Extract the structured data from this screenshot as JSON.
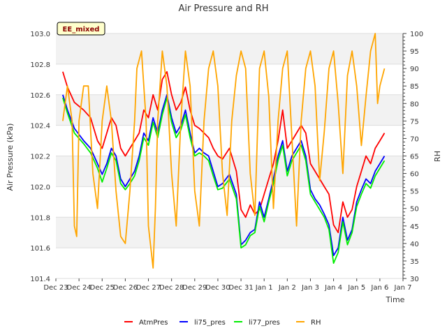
{
  "chart_data": {
    "type": "line",
    "title": "Air Pressure and RH",
    "xlabel": "Time",
    "ylabel": "Air Pressure (kPa)",
    "y2label": "RH",
    "badge": "EE_mixed",
    "x_tick_labels": [
      "Dec 23",
      "Dec 24",
      "Dec 25",
      "Dec 26",
      "Dec 27",
      "Dec 28",
      "Dec 29",
      "Dec 30",
      "Dec 31",
      "Jan 1",
      "Jan 2",
      "Jan 3",
      "Jan 4",
      "Jan 5",
      "Jan 6",
      "Jan 7"
    ],
    "xlim": [
      0,
      15
    ],
    "ylim": [
      101.4,
      103.0
    ],
    "y_ticks": [
      "101.4",
      "101.6",
      "101.8",
      "102.0",
      "102.2",
      "102.4",
      "102.6",
      "102.8",
      "103.0"
    ],
    "y2lim": [
      30,
      100
    ],
    "y2_ticks": [
      "30",
      "35",
      "40",
      "45",
      "50",
      "55",
      "60",
      "65",
      "70",
      "75",
      "80",
      "85",
      "90",
      "95",
      "100"
    ],
    "grid": "horizontal bands",
    "legend_position": "bottom",
    "series": [
      {
        "name": "AtmPres",
        "axis": "left",
        "color": "#ff0000",
        "x": [
          0.3,
          0.5,
          0.8,
          1.2,
          1.5,
          1.8,
          2.0,
          2.2,
          2.4,
          2.6,
          2.8,
          3.0,
          3.2,
          3.4,
          3.6,
          3.8,
          4.0,
          4.2,
          4.4,
          4.6,
          4.8,
          5.0,
          5.2,
          5.4,
          5.6,
          5.8,
          6.0,
          6.2,
          6.4,
          6.6,
          6.8,
          7.0,
          7.2,
          7.5,
          7.8,
          8.0,
          8.2,
          8.4,
          8.6,
          8.8,
          9.0,
          9.2,
          9.4,
          9.6,
          9.8,
          10.0,
          10.2,
          10.4,
          10.6,
          10.8,
          11.0,
          11.2,
          11.4,
          11.6,
          11.8,
          12.0,
          12.2,
          12.4,
          12.6,
          12.8,
          13.0,
          13.2,
          13.4,
          13.6,
          13.8,
          14.0,
          14.2
        ],
        "values": [
          102.75,
          102.65,
          102.55,
          102.5,
          102.45,
          102.3,
          102.25,
          102.35,
          102.45,
          102.4,
          102.25,
          102.2,
          102.25,
          102.3,
          102.35,
          102.5,
          102.45,
          102.6,
          102.5,
          102.7,
          102.75,
          102.6,
          102.5,
          102.55,
          102.65,
          102.5,
          102.4,
          102.38,
          102.35,
          102.32,
          102.25,
          102.2,
          102.18,
          102.25,
          102.1,
          101.85,
          101.8,
          101.88,
          101.82,
          101.85,
          101.95,
          102.05,
          102.15,
          102.3,
          102.5,
          102.25,
          102.3,
          102.35,
          102.4,
          102.35,
          102.15,
          102.1,
          102.05,
          102.0,
          101.95,
          101.75,
          101.7,
          101.9,
          101.8,
          101.85,
          102.0,
          102.1,
          102.2,
          102.15,
          102.25,
          102.3,
          102.35
        ]
      },
      {
        "name": "li75_pres",
        "axis": "left",
        "color": "#0000ff",
        "x": [
          0.3,
          0.5,
          0.8,
          1.2,
          1.5,
          1.8,
          2.0,
          2.2,
          2.4,
          2.6,
          2.8,
          3.0,
          3.2,
          3.4,
          3.6,
          3.8,
          4.0,
          4.2,
          4.4,
          4.6,
          4.8,
          5.0,
          5.2,
          5.4,
          5.6,
          5.8,
          6.0,
          6.2,
          6.4,
          6.6,
          6.8,
          7.0,
          7.2,
          7.5,
          7.8,
          8.0,
          8.2,
          8.4,
          8.6,
          8.8,
          9.0,
          9.2,
          9.4,
          9.6,
          9.8,
          10.0,
          10.2,
          10.4,
          10.6,
          10.8,
          11.0,
          11.2,
          11.4,
          11.6,
          11.8,
          12.0,
          12.2,
          12.4,
          12.6,
          12.8,
          13.0,
          13.2,
          13.4,
          13.6,
          13.8,
          14.0,
          14.2
        ],
        "values": [
          102.6,
          102.5,
          102.38,
          102.3,
          102.25,
          102.15,
          102.08,
          102.15,
          102.25,
          102.2,
          102.05,
          102.0,
          102.05,
          102.1,
          102.2,
          102.35,
          102.3,
          102.45,
          102.35,
          102.5,
          102.6,
          102.45,
          102.35,
          102.4,
          102.5,
          102.35,
          102.22,
          102.25,
          102.22,
          102.2,
          102.1,
          102.0,
          102.02,
          102.08,
          101.95,
          101.62,
          101.65,
          101.7,
          101.72,
          101.9,
          101.8,
          101.92,
          102.05,
          102.2,
          102.3,
          102.1,
          102.2,
          102.25,
          102.3,
          102.2,
          101.98,
          101.92,
          101.88,
          101.82,
          101.75,
          101.55,
          101.6,
          101.8,
          101.65,
          101.72,
          101.9,
          101.98,
          102.05,
          102.02,
          102.1,
          102.15,
          102.2
        ]
      },
      {
        "name": "li77_pres",
        "axis": "left",
        "color": "#00ee00",
        "x": [
          0.3,
          0.5,
          0.8,
          1.2,
          1.5,
          1.8,
          2.0,
          2.2,
          2.4,
          2.6,
          2.8,
          3.0,
          3.2,
          3.4,
          3.6,
          3.8,
          4.0,
          4.2,
          4.4,
          4.6,
          4.8,
          5.0,
          5.2,
          5.4,
          5.6,
          5.8,
          6.0,
          6.2,
          6.4,
          6.6,
          6.8,
          7.0,
          7.2,
          7.5,
          7.8,
          8.0,
          8.2,
          8.4,
          8.6,
          8.8,
          9.0,
          9.2,
          9.4,
          9.6,
          9.8,
          10.0,
          10.2,
          10.4,
          10.6,
          10.8,
          11.0,
          11.2,
          11.4,
          11.6,
          11.8,
          12.0,
          12.2,
          12.4,
          12.6,
          12.8,
          13.0,
          13.2,
          13.4,
          13.6,
          13.8,
          14.0,
          14.2
        ],
        "values": [
          102.58,
          102.48,
          102.35,
          102.28,
          102.22,
          102.12,
          102.03,
          102.12,
          102.22,
          102.17,
          102.02,
          101.98,
          102.02,
          102.07,
          102.17,
          102.32,
          102.27,
          102.42,
          102.32,
          102.47,
          102.58,
          102.42,
          102.32,
          102.37,
          102.47,
          102.32,
          102.2,
          102.22,
          102.2,
          102.17,
          102.07,
          101.98,
          101.99,
          102.05,
          101.92,
          101.6,
          101.62,
          101.68,
          101.7,
          101.87,
          101.77,
          101.9,
          102.02,
          102.17,
          102.27,
          102.07,
          102.17,
          102.22,
          102.27,
          102.17,
          101.95,
          101.9,
          101.85,
          101.8,
          101.72,
          101.5,
          101.57,
          101.77,
          101.62,
          101.7,
          101.87,
          101.95,
          102.02,
          101.99,
          102.07,
          102.12,
          102.17
        ]
      },
      {
        "name": "RH",
        "axis": "right",
        "color": "#ffa500",
        "x": [
          0.3,
          0.5,
          0.7,
          0.8,
          0.9,
          1.0,
          1.2,
          1.4,
          1.6,
          1.8,
          2.0,
          2.2,
          2.4,
          2.6,
          2.8,
          3.0,
          3.2,
          3.4,
          3.5,
          3.7,
          3.9,
          4.0,
          4.2,
          4.3,
          4.4,
          4.6,
          4.8,
          5.0,
          5.2,
          5.4,
          5.6,
          5.8,
          6.0,
          6.2,
          6.4,
          6.6,
          6.8,
          7.0,
          7.2,
          7.4,
          7.6,
          7.8,
          8.0,
          8.2,
          8.4,
          8.6,
          8.8,
          9.0,
          9.2,
          9.4,
          9.6,
          9.8,
          10.0,
          10.2,
          10.4,
          10.6,
          10.8,
          11.0,
          11.2,
          11.4,
          11.6,
          11.8,
          12.0,
          12.2,
          12.4,
          12.6,
          12.8,
          13.0,
          13.2,
          13.4,
          13.6,
          13.8,
          13.9,
          14.0,
          14.2
        ],
        "values": [
          75,
          85,
          75,
          45,
          42,
          75,
          85,
          85,
          60,
          50,
          75,
          85,
          75,
          55,
          42,
          40,
          55,
          75,
          90,
          95,
          75,
          45,
          33,
          50,
          75,
          95,
          85,
          60,
          45,
          75,
          95,
          85,
          55,
          45,
          75,
          90,
          95,
          85,
          60,
          48,
          75,
          88,
          95,
          90,
          60,
          48,
          90,
          95,
          82,
          50,
          75,
          90,
          95,
          70,
          45,
          75,
          90,
          95,
          85,
          58,
          72,
          90,
          95,
          80,
          60,
          88,
          95,
          85,
          68,
          82,
          95,
          100,
          80,
          85,
          90
        ]
      }
    ]
  }
}
